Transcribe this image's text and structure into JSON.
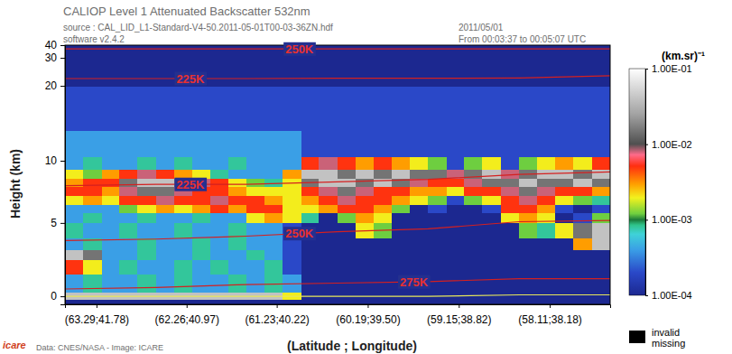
{
  "chart_data": {
    "type": "heatmap",
    "title": "CALIOP Level 1 Attenuated Backscatter 532nm",
    "subtitle": [
      "source : CAL_LID_L1-Standard-V4-50.2011-05-01T00-03-36ZN.hdf",
      "software v2.4.2"
    ],
    "annotations": [
      "2011/05/01",
      "From 00:03:37 to 00:05:07 UTC",
      "Data: CNES/NASA - Image: ICARE",
      "icare",
      "invalid",
      "missing"
    ],
    "x_label": "(Latitude ; Longitude)",
    "y_label": "Height (km)",
    "xlim": [
      63.65,
      57.42
    ],
    "xticks": [
      {
        "value": 63.29,
        "label": "(63.29;41.78)"
      },
      {
        "value": 62.26,
        "label": "(62.26;40.97)"
      },
      {
        "value": 61.23,
        "label": "(61.23;40.22)"
      },
      {
        "value": 60.19,
        "label": "(60.19;39.50)"
      },
      {
        "value": 59.15,
        "label": "(59.15;38.82)"
      },
      {
        "value": 58.11,
        "label": "(58.11;38.18)"
      }
    ],
    "ylim": [
      -0.5,
      40
    ],
    "yticks": [
      0,
      5,
      10,
      20,
      30,
      40
    ],
    "colorbar": {
      "title": "(km.sr)⁻¹",
      "log": true,
      "range": [
        0.0001,
        0.1
      ],
      "ticks": [
        {
          "value": 0.1,
          "label": "1.00E-01"
        },
        {
          "value": 0.01,
          "label": "1.00E-02"
        },
        {
          "value": 0.001,
          "label": "1.00E-03"
        },
        {
          "value": 0.0001,
          "label": "1.00E-04"
        }
      ]
    },
    "heatmap": {
      "x_edges": [
        63.65,
        63.44,
        63.23,
        63.03,
        62.82,
        62.61,
        62.4,
        62.2,
        61.99,
        61.78,
        61.58,
        61.37,
        61.16,
        60.95,
        60.75,
        60.54,
        60.33,
        60.12,
        59.92,
        59.71,
        59.5,
        59.29,
        59.09,
        58.88,
        58.67,
        58.46,
        58.26,
        58.05,
        57.84,
        57.63,
        57.42
      ],
      "y_edges": [
        -0.5,
        -0.2,
        0.3,
        1.5,
        2.5,
        3.2,
        4.0,
        5.0,
        5.8,
        6.5,
        7.2,
        7.9,
        8.6,
        9.3,
        10.5,
        14,
        20,
        30,
        40
      ],
      "values": [
        [
          0.0001,
          0.0001,
          0.0001,
          0.0001,
          0.0001,
          0.0001,
          0.0001,
          0.0001,
          0.0001,
          0.0001,
          0.0001,
          0.0001,
          0.0001,
          0.0001,
          0.0001,
          0.0001,
          0.0001,
          0.0001,
          0.0001,
          0.0001,
          0.0001,
          0.0001,
          0.0001,
          0.0001,
          0.0001,
          0.0001,
          0.0001,
          0.0001,
          0.0001,
          0.0001
        ],
        [
          0.04,
          0.04,
          0.04,
          0.04,
          0.04,
          0.04,
          0.04,
          0.04,
          0.04,
          0.04,
          0.04,
          0.04,
          0.002,
          0.0001,
          0.0001,
          0.0001,
          0.0001,
          0.0001,
          0.0001,
          0.0001,
          0.0001,
          0.0001,
          0.0001,
          0.0001,
          0.0001,
          0.0001,
          0.0001,
          0.0001,
          0.0001,
          0.0001
        ],
        [
          0.0004,
          0.0008,
          0.0004,
          0.0004,
          0.0008,
          0.0004,
          0.0008,
          0.0004,
          0.0004,
          0.0008,
          0.0004,
          0.0008,
          0.0004,
          0.0001,
          0.0001,
          0.0001,
          0.0001,
          0.0001,
          0.0001,
          0.0001,
          0.0001,
          0.0001,
          0.0001,
          0.0001,
          0.0001,
          0.0001,
          0.0001,
          0.0001,
          0.0001,
          0.0001
        ],
        [
          0.005,
          0.002,
          0.0004,
          0.0008,
          0.0004,
          0.0004,
          0.0008,
          0.0004,
          0.0008,
          0.0004,
          0.0004,
          0.0008,
          0.0002,
          0.0001,
          0.0001,
          0.0001,
          0.0001,
          0.0001,
          0.0001,
          0.0001,
          0.0001,
          0.0001,
          0.0001,
          0.0001,
          0.0001,
          0.0001,
          0.0001,
          0.0001,
          0.0001,
          0.0001
        ],
        [
          0.04,
          0.015,
          0.0004,
          0.0004,
          0.0008,
          0.0004,
          0.0004,
          0.0008,
          0.0004,
          0.0004,
          0.0008,
          0.0004,
          0.0002,
          0.0001,
          0.0001,
          0.0001,
          0.0001,
          0.0001,
          0.0001,
          0.0001,
          0.0001,
          0.0001,
          0.0001,
          0.0001,
          0.0001,
          0.0001,
          0.0001,
          0.0001,
          0.0001,
          0.0001
        ],
        [
          0.0004,
          0.0008,
          0.0004,
          0.0004,
          0.0008,
          0.0004,
          0.0004,
          0.0008,
          0.0004,
          0.0008,
          0.0004,
          0.0004,
          0.0002,
          0.0001,
          0.0001,
          0.0001,
          0.0001,
          0.0001,
          0.0001,
          0.0001,
          0.0001,
          0.0001,
          0.0001,
          0.0001,
          0.0001,
          0.0001,
          0.0001,
          0.0001,
          0.003,
          0.04
        ],
        [
          0.0008,
          0.0004,
          0.0004,
          0.0008,
          0.0004,
          0.0004,
          0.0008,
          0.0004,
          0.0004,
          0.0008,
          0.0004,
          0.0004,
          0.0002,
          0.0001,
          0.0001,
          0.0001,
          0.002,
          0.0012,
          0.0001,
          0.0001,
          0.0001,
          0.0001,
          0.0001,
          0.0001,
          0.0001,
          0.0012,
          0.0008,
          0.002,
          0.015,
          0.04
        ],
        [
          0.0004,
          0.0008,
          0.0004,
          0.0004,
          0.0008,
          0.0004,
          0.0004,
          0.0008,
          0.0004,
          0.0004,
          0.002,
          0.003,
          0.002,
          0.0008,
          0.0001,
          0.0012,
          0.003,
          0.002,
          0.0001,
          0.0001,
          0.0001,
          0.0001,
          0.0001,
          0.0001,
          0.002,
          0.003,
          0.002,
          0.0001,
          0.0002,
          0.0012
        ],
        [
          0.0004,
          0.0004,
          0.0004,
          0.0012,
          0.002,
          0.003,
          0.002,
          0.003,
          0.005,
          0.003,
          0.005,
          0.005,
          0.002,
          0.002,
          0.003,
          0.005,
          0.005,
          0.003,
          0.0012,
          0.0001,
          0.0002,
          0.0001,
          0.0001,
          0.0002,
          0.005,
          0.005,
          0.003,
          0.0002,
          0.0001,
          0.0002
        ],
        [
          0.002,
          0.003,
          0.002,
          0.005,
          0.005,
          0.008,
          0.005,
          0.005,
          0.008,
          0.005,
          0.005,
          0.003,
          0.002,
          0.003,
          0.005,
          0.008,
          0.005,
          0.005,
          0.003,
          0.002,
          0.0012,
          0.0002,
          0.0012,
          0.002,
          0.005,
          0.008,
          0.005,
          0.002,
          0.0012,
          0.0008
        ],
        [
          0.005,
          0.005,
          0.003,
          0.008,
          0.015,
          0.015,
          0.008,
          0.005,
          0.005,
          0.003,
          0.002,
          0.002,
          0.002,
          0.005,
          0.008,
          0.015,
          0.008,
          0.005,
          0.005,
          0.003,
          0.003,
          0.002,
          0.005,
          0.005,
          0.008,
          0.015,
          0.008,
          0.005,
          0.005,
          0.003
        ],
        [
          0.003,
          0.005,
          0.005,
          0.015,
          0.04,
          0.04,
          0.015,
          0.008,
          0.005,
          0.002,
          0.0012,
          0.0008,
          0.002,
          0.015,
          0.04,
          0.04,
          0.015,
          0.04,
          0.015,
          0.008,
          0.005,
          0.005,
          0.008,
          0.015,
          0.015,
          0.04,
          0.015,
          0.015,
          0.04,
          0.015
        ],
        [
          0.002,
          0.0012,
          0.003,
          0.005,
          0.008,
          0.005,
          0.003,
          0.002,
          0.0008,
          0.0004,
          0.0004,
          0.0004,
          0.003,
          0.04,
          0.04,
          0.015,
          0.04,
          0.015,
          0.04,
          0.015,
          0.015,
          0.008,
          0.015,
          0.04,
          0.008,
          0.015,
          0.04,
          0.04,
          0.015,
          0.04
        ],
        [
          0.0004,
          0.0008,
          0.0004,
          0.0004,
          0.0008,
          0.0004,
          0.0008,
          0.0004,
          0.0004,
          0.0008,
          0.0004,
          0.0004,
          0.0004,
          0.005,
          0.008,
          0.005,
          0.003,
          0.005,
          0.003,
          0.002,
          0.0012,
          0.0002,
          0.0012,
          0.002,
          0.0002,
          0.0012,
          0.002,
          0.003,
          0.002,
          0.005
        ],
        [
          0.0004,
          0.0004,
          0.0004,
          0.0004,
          0.0004,
          0.0004,
          0.0004,
          0.0004,
          0.0004,
          0.0004,
          0.0004,
          0.0004,
          0.0004,
          0.0002,
          0.0002,
          0.0002,
          0.0002,
          0.0002,
          0.0002,
          0.0002,
          0.0002,
          0.0002,
          0.0002,
          0.0002,
          0.0002,
          0.0002,
          0.0002,
          0.0002,
          0.0002,
          0.0002
        ],
        [
          0.0002,
          0.0002,
          0.0002,
          0.0002,
          0.0002,
          0.0002,
          0.0002,
          0.0002,
          0.0002,
          0.0002,
          0.0002,
          0.0002,
          0.0002,
          0.0002,
          0.0002,
          0.0002,
          0.0002,
          0.0002,
          0.0002,
          0.0002,
          0.0002,
          0.0002,
          0.0002,
          0.0002,
          0.0002,
          0.0002,
          0.0002,
          0.0002,
          0.0002,
          0.0002
        ],
        [
          0.0001,
          0.0001,
          0.0001,
          0.0001,
          0.0001,
          0.0001,
          0.0001,
          0.0001,
          0.0001,
          0.0001,
          0.0001,
          0.0001,
          0.0001,
          0.0001,
          0.0001,
          0.0001,
          0.0001,
          0.0001,
          0.0001,
          0.0001,
          0.0001,
          0.0001,
          0.0001,
          0.0001,
          0.0001,
          0.0001,
          0.0001,
          0.0001,
          0.0001,
          0.0001
        ],
        [
          0.0001,
          0.0001,
          0.0001,
          0.0001,
          0.0001,
          0.0001,
          0.0001,
          0.0001,
          0.0001,
          0.0001,
          0.0001,
          0.0001,
          0.0001,
          0.0001,
          0.0001,
          0.0001,
          0.0001,
          0.0001,
          0.0001,
          0.0001,
          0.0001,
          0.0001,
          0.0001,
          0.0001,
          0.0001,
          0.0001,
          0.0001,
          0.0001,
          0.0001,
          0.0001
        ]
      ]
    },
    "x": [
      63.65,
      62.61,
      61.58,
      60.54,
      59.5,
      58.46,
      57.42
    ],
    "series": [
      {
        "name": "250K",
        "color": "#d42020",
        "values": [
          37,
          37,
          37,
          37,
          37,
          37,
          37
        ]
      },
      {
        "name": "225K",
        "color": "#d42020",
        "values": [
          22.6,
          22.6,
          22.6,
          22.7,
          22.7,
          22.8,
          23.6
        ]
      },
      {
        "name": "225K",
        "color": "#d42020",
        "values": [
          8.0,
          8.1,
          8.1,
          8.3,
          8.5,
          8.9,
          9.1
        ]
      },
      {
        "name": "250K",
        "color": "#d42020",
        "values": [
          3.8,
          3.9,
          4.1,
          4.4,
          4.6,
          5.1,
          5.2
        ]
      },
      {
        "name": "275K",
        "color": "#d42020",
        "values": [
          0.5,
          0.6,
          0.8,
          0.9,
          1.0,
          1.2,
          1.2
        ]
      },
      {
        "color": "#e8e85a",
        "values": [
          0,
          0,
          0,
          0,
          0,
          0.1,
          0.1
        ]
      }
    ]
  }
}
